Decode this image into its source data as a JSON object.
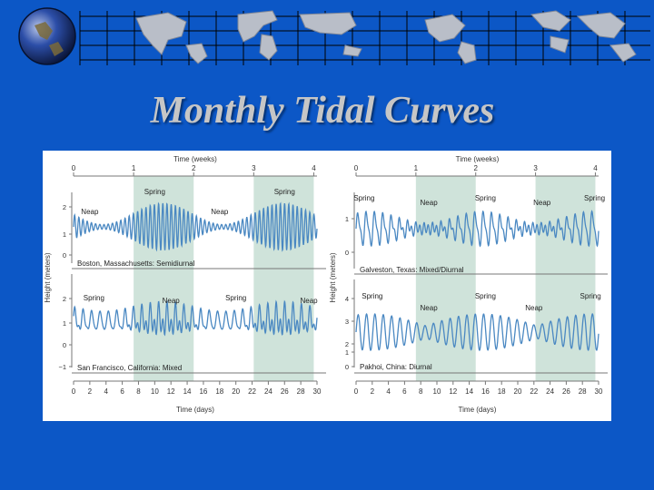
{
  "slide": {
    "title": "Monthly Tidal Curves"
  },
  "colors": {
    "background": "#0c57c6",
    "curve": "#4a88c2",
    "band": "#cfe3da",
    "grid": "#777777"
  },
  "chart_data": [
    {
      "type": "line",
      "x_top_label": "Time (weeks)",
      "x_top_ticks": [
        "0",
        "1",
        "2",
        "3",
        "4"
      ],
      "x_bottom_label": "Time (days)",
      "x_bottom_ticks": [
        "0",
        "2",
        "4",
        "6",
        "8",
        "10",
        "12",
        "14",
        "16",
        "18",
        "20",
        "22",
        "24",
        "26",
        "28",
        "30"
      ],
      "ylabel": "Height (meters)",
      "shaded_weeks": [
        [
          1,
          2
        ],
        [
          3,
          4
        ]
      ],
      "panels": [
        {
          "station": "Boston, Massachusetts: Semidiurnal",
          "yticks": [
            "2",
            "1",
            "0"
          ],
          "annotations": [
            {
              "text": "Neap",
              "day": 2
            },
            {
              "text": "Spring",
              "day": 10
            },
            {
              "text": "Neap",
              "day": 18
            },
            {
              "text": "Spring",
              "day": 26
            }
          ]
        },
        {
          "station": "San Francisco, California: Mixed",
          "yticks": [
            "2",
            "1",
            "0",
            "−1"
          ],
          "annotations": [
            {
              "text": "Spring",
              "day": 2.5
            },
            {
              "text": "Neap",
              "day": 12
            },
            {
              "text": "Spring",
              "day": 20
            },
            {
              "text": "Neap",
              "day": 29
            }
          ]
        }
      ]
    },
    {
      "type": "line",
      "x_top_label": "Time (weeks)",
      "x_top_ticks": [
        "0",
        "1",
        "2",
        "3",
        "4"
      ],
      "x_bottom_label": "Time (days)",
      "x_bottom_ticks": [
        "0",
        "2",
        "4",
        "6",
        "8",
        "10",
        "12",
        "14",
        "16",
        "18",
        "20",
        "22",
        "24",
        "26",
        "28",
        "30"
      ],
      "ylabel": "Height (meters)",
      "shaded_weeks": [
        [
          1,
          2
        ],
        [
          3,
          4
        ]
      ],
      "panels": [
        {
          "station": "Galveston, Texas: Mixed/Diurnal",
          "yticks": [
            "1",
            "0"
          ],
          "annotations": [
            {
              "text": "Spring",
              "day": 1
            },
            {
              "text": "Neap",
              "day": 9
            },
            {
              "text": "Spring",
              "day": 16
            },
            {
              "text": "Neap",
              "day": 23
            },
            {
              "text": "Spring",
              "day": 29.5
            }
          ]
        },
        {
          "station": "Pakhoi, China: Diurnal",
          "yticks": [
            "4",
            "3",
            "2",
            "1",
            "0"
          ],
          "annotations": [
            {
              "text": "Spring",
              "day": 2
            },
            {
              "text": "Neap",
              "day": 9
            },
            {
              "text": "Spring",
              "day": 16
            },
            {
              "text": "Neap",
              "day": 22
            },
            {
              "text": "Spring",
              "day": 29
            }
          ]
        }
      ]
    }
  ]
}
